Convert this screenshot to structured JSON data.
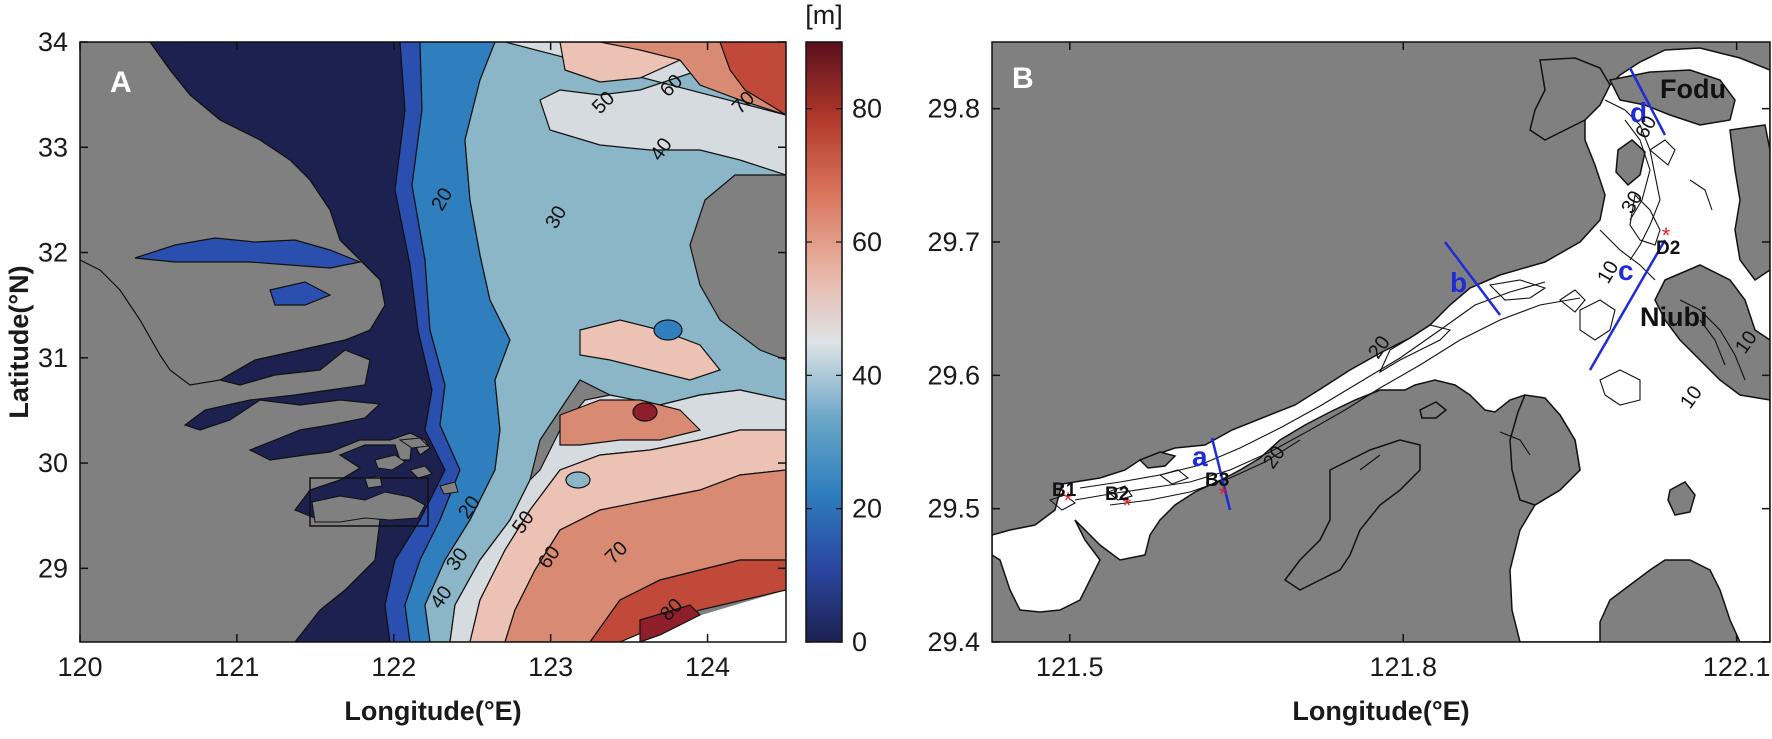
{
  "panel_a": {
    "label": "A",
    "xlabel": "Longitude(°E)",
    "ylabel": "Latitude(°N)",
    "x_ticks": [
      "120",
      "121",
      "122",
      "123",
      "124"
    ],
    "y_ticks": [
      "34",
      "33",
      "32",
      "31",
      "30",
      "29"
    ],
    "xlim": [
      120,
      124.5
    ],
    "ylim": [
      28.3,
      34
    ],
    "contour_labels": [
      "20",
      "30",
      "40",
      "50",
      "60",
      "70",
      "20",
      "30",
      "40",
      "50",
      "60",
      "70",
      "80"
    ],
    "colorbar": {
      "unit": "[m]",
      "ticks": [
        "80",
        "60",
        "40",
        "20",
        "0"
      ],
      "range": [
        0,
        90
      ],
      "colors": [
        "#1c2150",
        "#2a55b8",
        "#3f8fc6",
        "#8fbccb",
        "#dfe3e6",
        "#e8b4a4",
        "#d9735c",
        "#b23a2c",
        "#5c0f1d"
      ]
    },
    "colors": {
      "land": "#808080",
      "d0_10": "#1c2150",
      "d10_20": "#2b4fae",
      "d20_30": "#2f7fbf",
      "d30_40": "#8ab6c8",
      "d40_50": "#d5dbde",
      "d50_60": "#ebc2b4",
      "d60_70": "#d98a73",
      "d70_80": "#c0493a",
      "d80_90": "#8e1f2a"
    }
  },
  "panel_b": {
    "label": "B",
    "xlabel": "Longitude(°E)",
    "x_ticks": [
      "121.5",
      "121.8",
      "122.1"
    ],
    "y_ticks": [
      "29.8",
      "29.7",
      "29.6",
      "29.5",
      "29.4"
    ],
    "xlim": [
      121.43,
      122.13
    ],
    "ylim": [
      29.4,
      29.85
    ],
    "places": [
      "Fodu",
      "Niubi"
    ],
    "sections": [
      "a",
      "b",
      "c",
      "d"
    ],
    "stations": [
      "B1",
      "B2",
      "B3",
      "D2"
    ],
    "contour_labels": [
      "60",
      "30",
      "10",
      "20",
      "10",
      "10",
      "20"
    ],
    "colors": {
      "land": "#808080",
      "water": "#ffffff",
      "section": "#1d2bd8",
      "station": "#e21f26"
    }
  }
}
